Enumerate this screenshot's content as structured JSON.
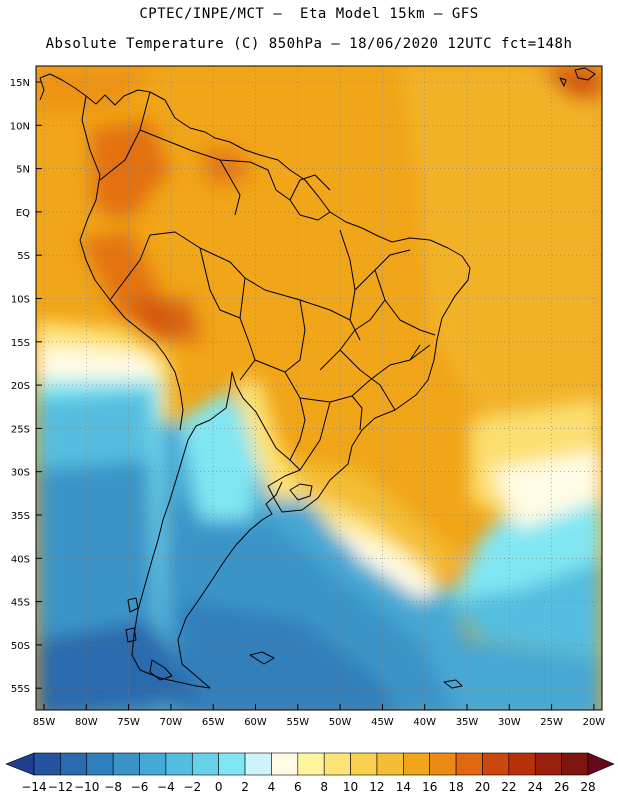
{
  "title_line1": "CPTEC/INPE/MCT —  Eta Model 15km — GFS",
  "title_line2": "Absolute Temperature (C) 850hPa — 18/06/2020 12UTC fct=148h",
  "lat_labels": [
    "15N",
    "10N",
    "5N",
    "EQ",
    "5S",
    "10S",
    "15S",
    "20S",
    "25S",
    "30S",
    "35S",
    "40S",
    "45S",
    "50S",
    "55S"
  ],
  "lon_labels": [
    "85W",
    "80W",
    "75W",
    "70W",
    "65W",
    "60W",
    "55W",
    "50W",
    "45W",
    "40W",
    "35W",
    "30W",
    "25W",
    "20W"
  ],
  "colorbar": {
    "labels": [
      "-14",
      "-12",
      "-10",
      "-8",
      "-6",
      "-4",
      "-2",
      "0",
      "2",
      "4",
      "6",
      "8",
      "10",
      "12",
      "14",
      "16",
      "18",
      "20",
      "22",
      "24",
      "26",
      "28"
    ],
    "colors": [
      "#1e3f8f",
      "#24549f",
      "#2a6aae",
      "#307fbc",
      "#3a94c8",
      "#46a8d4",
      "#55bddf",
      "#66d2e9",
      "#80e6f3",
      "#cdf3fb",
      "#fffbe5",
      "#fff59e",
      "#fde479",
      "#f8d050",
      "#f3bd35",
      "#f1a518",
      "#eb8a14",
      "#e06810",
      "#cd470d",
      "#b7310b",
      "#9b1f0e",
      "#7d1511",
      "#67091e"
    ]
  }
}
